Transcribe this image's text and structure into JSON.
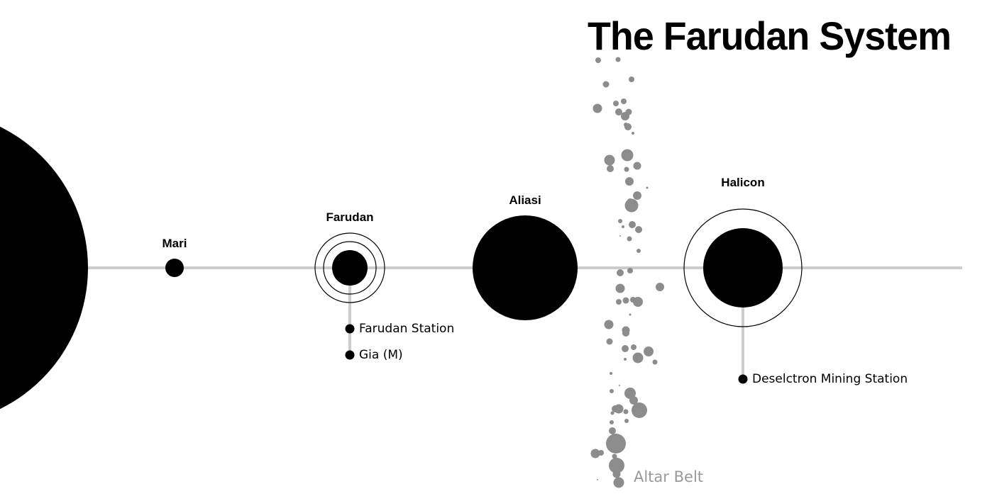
{
  "title": "The Farudan System",
  "colors": {
    "body": "#000000",
    "orbit_line": "#cccccc",
    "asteroid": "#8c8c8c",
    "belt_label": "#999999",
    "background": "#ffffff"
  },
  "star": {
    "name": ""
  },
  "planets": [
    {
      "name": "Mari",
      "rings": 0
    },
    {
      "name": "Farudan",
      "rings": 2
    },
    {
      "name": "Aliasi",
      "rings": 0
    },
    {
      "name": "Halicon",
      "rings": 1
    }
  ],
  "satellites": {
    "farudan": [
      "Farudan Station",
      "Gia (M)"
    ],
    "halicon": [
      "Deselctron Mining Station"
    ]
  },
  "belt": {
    "name": "Altar Belt"
  }
}
